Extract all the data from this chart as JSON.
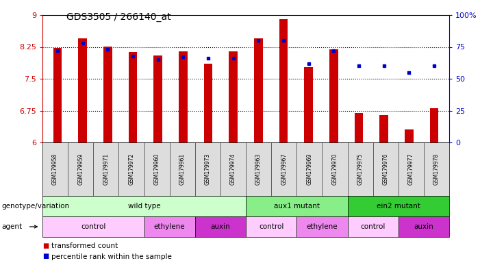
{
  "title": "GDS3505 / 266140_at",
  "samples": [
    "GSM179958",
    "GSM179959",
    "GSM179971",
    "GSM179972",
    "GSM179960",
    "GSM179961",
    "GSM179973",
    "GSM179974",
    "GSM179963",
    "GSM179967",
    "GSM179969",
    "GSM179970",
    "GSM179975",
    "GSM179976",
    "GSM179977",
    "GSM179978"
  ],
  "bar_values": [
    8.22,
    8.45,
    8.26,
    8.13,
    8.05,
    8.15,
    7.85,
    8.15,
    8.45,
    8.9,
    7.78,
    8.2,
    6.7,
    6.65,
    6.3,
    6.8
  ],
  "percentile_values": [
    72,
    78,
    73,
    68,
    65,
    67,
    66,
    66,
    80,
    80,
    62,
    72,
    60,
    60,
    55,
    60
  ],
  "bar_color": "#cc0000",
  "dot_color": "#0000cc",
  "ylim_left": [
    6,
    9
  ],
  "ylim_right": [
    0,
    100
  ],
  "yticks_left": [
    6,
    6.75,
    7.5,
    8.25,
    9
  ],
  "yticks_right": [
    0,
    25,
    50,
    75,
    100
  ],
  "ytick_labels_left": [
    "6",
    "6.75",
    "7.5",
    "8.25",
    "9"
  ],
  "ytick_labels_right": [
    "0",
    "25",
    "50",
    "75",
    "100%"
  ],
  "grid_values": [
    6.75,
    7.5,
    8.25
  ],
  "genotype_groups": [
    {
      "label": "wild type",
      "start": 0,
      "end": 8,
      "color": "#ccffcc"
    },
    {
      "label": "aux1 mutant",
      "start": 8,
      "end": 12,
      "color": "#88ee88"
    },
    {
      "label": "ein2 mutant",
      "start": 12,
      "end": 16,
      "color": "#33cc33"
    }
  ],
  "agent_groups": [
    {
      "label": "control",
      "start": 0,
      "end": 4,
      "color": "#ffccff"
    },
    {
      "label": "ethylene",
      "start": 4,
      "end": 6,
      "color": "#ee88ee"
    },
    {
      "label": "auxin",
      "start": 6,
      "end": 8,
      "color": "#cc33cc"
    },
    {
      "label": "control",
      "start": 8,
      "end": 10,
      "color": "#ffccff"
    },
    {
      "label": "ethylene",
      "start": 10,
      "end": 12,
      "color": "#ee88ee"
    },
    {
      "label": "control",
      "start": 12,
      "end": 14,
      "color": "#ffccff"
    },
    {
      "label": "auxin",
      "start": 14,
      "end": 16,
      "color": "#cc33cc"
    }
  ],
  "legend_bar_label": "transformed count",
  "legend_dot_label": "percentile rank within the sample",
  "row_label_genotype": "genotype/variation",
  "row_label_agent": "agent",
  "background_color": "#ffffff"
}
